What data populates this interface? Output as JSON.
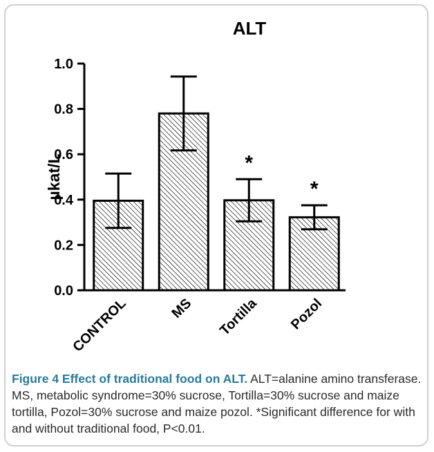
{
  "chart_data": {
    "type": "bar",
    "title": "ALT",
    "ylabel": "µkat/L",
    "xlabel": "",
    "categories": [
      "CONTROL",
      "MS",
      "Tortilla",
      "Pozol"
    ],
    "values": [
      0.395,
      0.78,
      0.397,
      0.322
    ],
    "error": [
      0.12,
      0.163,
      0.093,
      0.053
    ],
    "significance": [
      "",
      "",
      "*",
      "*"
    ],
    "ylim": [
      0,
      1.0
    ],
    "yticks": [
      "0.0",
      "0.2",
      "0.4",
      "0.6",
      "0.8",
      "1.0"
    ],
    "ytick_values": [
      0,
      0.2,
      0.4,
      0.6,
      0.8,
      1.0
    ],
    "bar_pattern": "diagonal-hatch",
    "grid": false,
    "legend": "none"
  },
  "caption": {
    "label": "Figure 4 Effect of traditional food on ALT.",
    "text": " ALT=alanine amino transferase. MS, metabolic syndrome=30% sucrose, Tortilla=30% sucrose and maize tortilla, Pozol=30% sucrose and maize pozol. *Significant difference for with and without traditional food, P<0.01."
  },
  "colors": {
    "bar_stroke": "#000000",
    "hatch": "#000000",
    "caption_label": "#2a7a9a",
    "frame": "#cfcfcf"
  }
}
